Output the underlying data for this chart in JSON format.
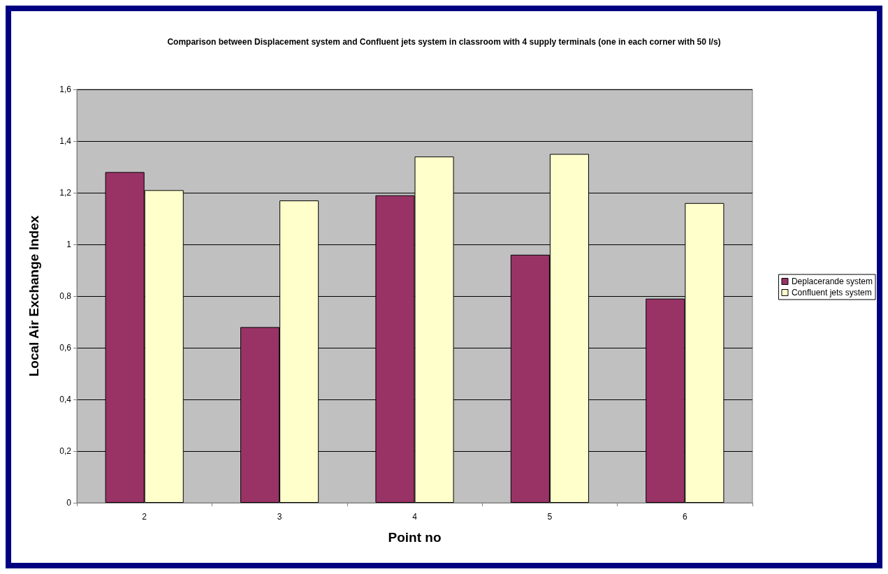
{
  "chart_data": {
    "type": "bar",
    "title": "Comparison between Displacement system and Confluent jets system in classroom with 4 supply terminals (one in each corner with 50 l/s)",
    "xlabel": "Point no",
    "ylabel": "Local Air Exchange Index",
    "categories": [
      "2",
      "3",
      "4",
      "5",
      "6"
    ],
    "series": [
      {
        "name": "Deplacerande system",
        "color": "#993366",
        "values": [
          1.28,
          0.68,
          1.19,
          0.96,
          0.79
        ]
      },
      {
        "name": "Confluent jets system",
        "color": "#ffffcc",
        "values": [
          1.21,
          1.17,
          1.34,
          1.35,
          1.16
        ]
      }
    ],
    "ylim": [
      0,
      1.6
    ],
    "yticks": [
      {
        "value": 0,
        "label": "0"
      },
      {
        "value": 0.2,
        "label": "0,2"
      },
      {
        "value": 0.4,
        "label": "0,4"
      },
      {
        "value": 0.6,
        "label": "0,6"
      },
      {
        "value": 0.8,
        "label": "0,8"
      },
      {
        "value": 1,
        "label": "1"
      },
      {
        "value": 1.2,
        "label": "1,2"
      },
      {
        "value": 1.4,
        "label": "1,4"
      },
      {
        "value": 1.6,
        "label": "1,6"
      }
    ],
    "grid": "y",
    "legend": "right"
  }
}
